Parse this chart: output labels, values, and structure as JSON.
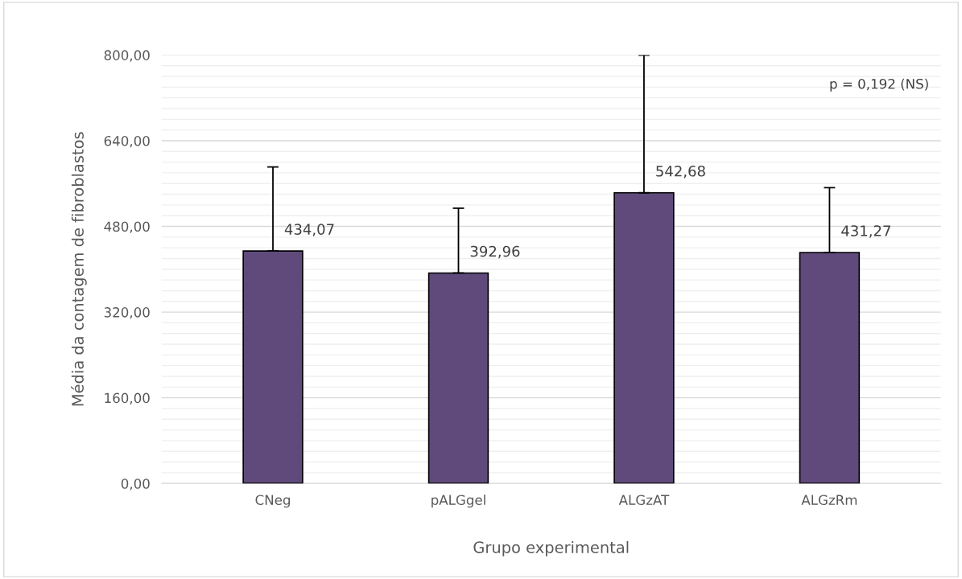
{
  "chart_data": {
    "type": "bar",
    "xlabel": "Grupo experimental",
    "ylabel": "Média da contagem de fibroblastos",
    "categories": [
      "CNeg",
      "pALGgel",
      "ALGzAT",
      "ALGzRm"
    ],
    "values": [
      434.07,
      392.96,
      542.68,
      431.27
    ],
    "value_labels": [
      "434,07",
      "392,96",
      "542,68",
      "431,27"
    ],
    "errors": [
      [
        434.07,
        591.07
      ],
      [
        392.96,
        513.96
      ],
      [
        542.68,
        799.68
      ],
      [
        431.27,
        552.27
      ]
    ],
    "color": "#604a7b",
    "ylim": [
      0,
      800
    ],
    "yticks": [
      {
        "value": 0,
        "label": "0,00"
      },
      {
        "value": 20,
        "label": null
      },
      {
        "value": 40,
        "label": null
      },
      {
        "value": 60,
        "label": null
      },
      {
        "value": 80,
        "label": null
      },
      {
        "value": 100,
        "label": null
      },
      {
        "value": 120,
        "label": null
      },
      {
        "value": 140,
        "label": null
      },
      {
        "value": 160,
        "label": "160,00"
      },
      {
        "value": 180,
        "label": null
      },
      {
        "value": 200,
        "label": null
      },
      {
        "value": 220,
        "label": null
      },
      {
        "value": 240,
        "label": null
      },
      {
        "value": 260,
        "label": null
      },
      {
        "value": 280,
        "label": null
      },
      {
        "value": 300,
        "label": null
      },
      {
        "value": 320,
        "label": "320,00"
      },
      {
        "value": 340,
        "label": null
      },
      {
        "value": 360,
        "label": null
      },
      {
        "value": 380,
        "label": null
      },
      {
        "value": 400,
        "label": null
      },
      {
        "value": 420,
        "label": null
      },
      {
        "value": 440,
        "label": null
      },
      {
        "value": 460,
        "label": null
      },
      {
        "value": 480,
        "label": "480,00"
      },
      {
        "value": 500,
        "label": null
      },
      {
        "value": 520,
        "label": null
      },
      {
        "value": 540,
        "label": null
      },
      {
        "value": 560,
        "label": null
      },
      {
        "value": 580,
        "label": null
      },
      {
        "value": 600,
        "label": null
      },
      {
        "value": 620,
        "label": null
      },
      {
        "value": 640,
        "label": "640,00"
      },
      {
        "value": 660,
        "label": null
      },
      {
        "value": 680,
        "label": null
      },
      {
        "value": 700,
        "label": null
      },
      {
        "value": 720,
        "label": null
      },
      {
        "value": 740,
        "label": null
      },
      {
        "value": 760,
        "label": null
      },
      {
        "value": 780,
        "label": null
      },
      {
        "value": 800,
        "label": "800,00"
      }
    ],
    "grid": "y",
    "annotations": [
      "p = 0,192 (NS)"
    ]
  }
}
